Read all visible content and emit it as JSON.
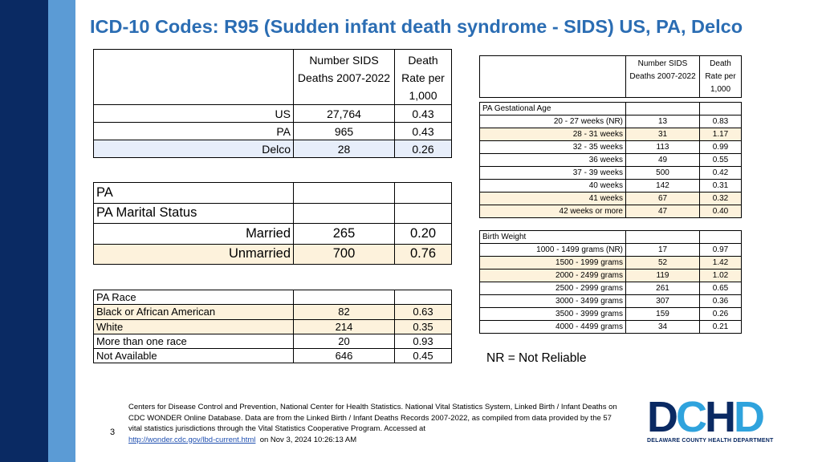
{
  "title": "ICD-10 Codes: R95 (Sudden infant death syndrome - SIDS) US, PA, Delco",
  "table1": {
    "header_deaths_l1": "Number SIDS",
    "header_deaths_l2": "Deaths 2007-2022",
    "header_rate_l1": "Death",
    "header_rate_l2": "Rate per",
    "header_rate_l3": "1,000",
    "rows": [
      {
        "label": "US",
        "deaths": "27,764",
        "rate": "0.43"
      },
      {
        "label": "PA",
        "deaths": "965",
        "rate": "0.43"
      },
      {
        "label": "Delco",
        "deaths": "28",
        "rate": "0.26"
      }
    ]
  },
  "table2": {
    "row1": "PA",
    "row2": "PA Marital Status",
    "rows": [
      {
        "label": "Married",
        "deaths": "265",
        "rate": "0.20"
      },
      {
        "label": "Unmarried",
        "deaths": "700",
        "rate": "0.76"
      }
    ]
  },
  "table3": {
    "header": "PA Race",
    "rows": [
      {
        "label": "Black or African American",
        "deaths": "82",
        "rate": "0.63"
      },
      {
        "label": "White",
        "deaths": "214",
        "rate": "0.35"
      },
      {
        "label": "More than one race",
        "deaths": "20",
        "rate": "0.93"
      },
      {
        "label": "Not Available",
        "deaths": "646",
        "rate": "0.45"
      }
    ]
  },
  "table4": {
    "header_deaths_l1": "Number SIDS",
    "header_deaths_l2": "Deaths 2007-2022",
    "header_rate_l1": "Death",
    "header_rate_l2": "Rate per",
    "header_rate_l3": "1,000"
  },
  "table5": {
    "header": "PA  Gestational Age",
    "rows": [
      {
        "label": "20 - 27 weeks (NR)",
        "deaths": "13",
        "rate": "0.83"
      },
      {
        "label": "28 - 31 weeks",
        "deaths": "31",
        "rate": "1.17"
      },
      {
        "label": "32 - 35 weeks",
        "deaths": "113",
        "rate": "0.99"
      },
      {
        "label": "36 weeks",
        "deaths": "49",
        "rate": "0.55"
      },
      {
        "label": "37 - 39 weeks",
        "deaths": "500",
        "rate": "0.42"
      },
      {
        "label": "40 weeks",
        "deaths": "142",
        "rate": "0.31"
      },
      {
        "label": "41 weeks",
        "deaths": "67",
        "rate": "0.32"
      },
      {
        "label": "42 weeks or more",
        "deaths": "47",
        "rate": "0.40"
      }
    ]
  },
  "table6": {
    "header": "Birth Weight",
    "rows": [
      {
        "label": "1000 - 1499 grams (NR)",
        "deaths": "17",
        "rate": "0.97"
      },
      {
        "label": "1500 - 1999 grams",
        "deaths": "52",
        "rate": "1.42"
      },
      {
        "label": "2000 - 2499 grams",
        "deaths": "119",
        "rate": "1.02"
      },
      {
        "label": "2500 - 2999 grams",
        "deaths": "261",
        "rate": "0.65"
      },
      {
        "label": "3000 - 3499 grams",
        "deaths": "307",
        "rate": "0.36"
      },
      {
        "label": "3500 - 3999 grams",
        "deaths": "159",
        "rate": "0.26"
      },
      {
        "label": "4000 - 4499 grams",
        "deaths": "34",
        "rate": "0.21"
      }
    ]
  },
  "note": "NR = Not Reliable",
  "footer": {
    "text": "Centers for Disease Control and Prevention, National Center for Health Statistics. National Vital Statistics System, Linked Birth / Infant Deaths on CDC WONDER Online Database. Data are from the Linked Birth / Infant Deaths Records 2007-2022, as compiled from data provided by the 57 vital statistics jurisdictions through the Vital Statistics Cooperative Program. Accessed at",
    "link": "http://wonder.cdc.gov/lbd-current.html",
    "accessed": "on Nov 3, 2024 10:26:13 AM"
  },
  "page_number": "3",
  "logo": {
    "letters": "DCHD",
    "subtitle": "DELAWARE COUNTY HEALTH DEPARTMENT",
    "color_dark": "#0a2a63",
    "color_light": "#2fa3dd"
  },
  "colors": {
    "title": "#2b6db3",
    "stripe_navy": "#0a2a63",
    "stripe_blue": "#5b9bd5",
    "highlight": "#fdf2dc",
    "highlight_blue": "#e7eefa"
  }
}
